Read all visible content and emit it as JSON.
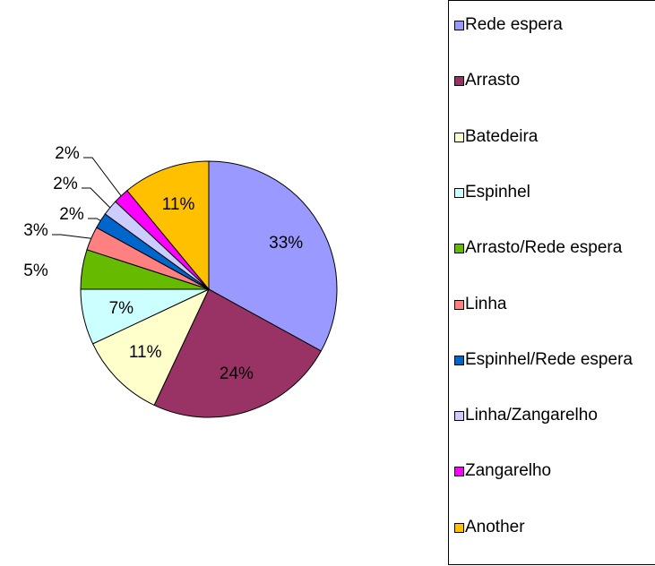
{
  "chart_data": {
    "type": "pie",
    "categories": [
      "Rede espera",
      "Arrasto",
      "Batedeira",
      "Espinhel",
      "Arrasto/Rede espera",
      "Linha",
      "Espinhel/Rede espera",
      "Linha/Zangarelho",
      "Zangarelho",
      "Another"
    ],
    "values": [
      33,
      24,
      11,
      7,
      5,
      3,
      2,
      2,
      2,
      11
    ],
    "value_labels": [
      "33%",
      "24%",
      "11%",
      "7%",
      "5%",
      "3%",
      "2%",
      "2%",
      "2%",
      "11%"
    ],
    "colors": [
      "#9999ff",
      "#993366",
      "#ffffcc",
      "#ccffff",
      "#66bb00",
      "#ff8080",
      "#0066cc",
      "#ccccff",
      "#ff00ff",
      "#ffc000"
    ],
    "legend": "right"
  }
}
